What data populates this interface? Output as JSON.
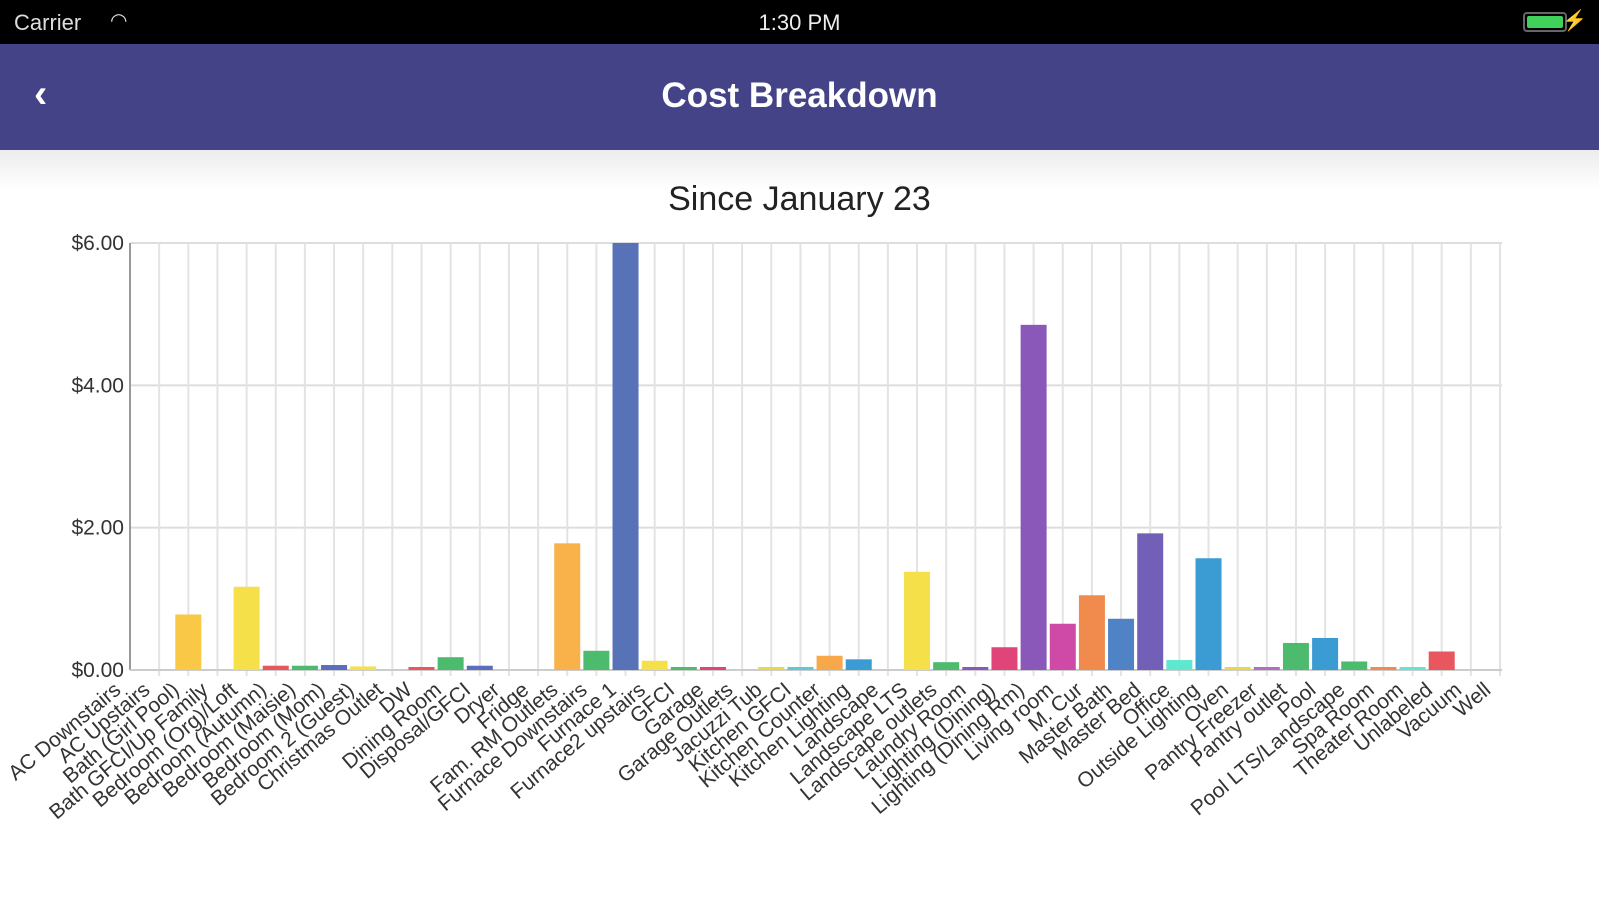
{
  "status_bar": {
    "carrier": "Carrier",
    "time": "1:30 PM"
  },
  "nav": {
    "title": "Cost Breakdown",
    "back_icon": "chevron-left-icon"
  },
  "chart_data": {
    "type": "bar",
    "title": "Since January 23",
    "xlabel": "",
    "ylabel": "",
    "ylim": [
      0,
      6
    ],
    "yticks": [
      "$0.00",
      "$2.00",
      "$4.00",
      "$6.00"
    ],
    "ytick_values": [
      0,
      2,
      4,
      6
    ],
    "grid": true,
    "categories": [
      "AC Downstairs",
      "AC Upstairs",
      "Bath (Girl Pool)",
      "Bath GFCI/Up Family",
      "Bedroom (Org)/Loft",
      "Bedroom (Autumn)",
      "Bedroom (Maisie)",
      "Bedroom (Mom)",
      "Bedroom 2 (Guest)",
      "Christmas Outlet",
      "DW",
      "Dining Room",
      "Disposal/GFCI",
      "Dryer",
      "Fridge",
      "Fam. RM Outlets",
      "Furnace Downstairs",
      "Furnace 1",
      "Furnace2 upstairs",
      "GFCI",
      "Garage",
      "Garage Outlets",
      "Jacuzzi Tub",
      "Kitchen GFCI",
      "Kitchen Counter",
      "Kitchen Lighting",
      "Landscape",
      "Landscape LTS",
      "Landscape outlets",
      "Laundry Room",
      "Lighting (Dining)",
      "Lighting (Dining Rm)",
      "Living room",
      "M. Cur",
      "Master Bath",
      "Master Bed",
      "Office",
      "Outside Lighting",
      "Oven",
      "Pantry Freezer",
      "Pantry outlet",
      "Pool",
      "Pool LTS/Landscape",
      "Spa Room",
      "Theater Room",
      "Unlabeled",
      "Vacuum",
      "Well"
    ],
    "values": [
      0,
      0,
      0.78,
      0,
      1.17,
      0.06,
      0.06,
      0.07,
      0.05,
      0,
      0.03,
      0.18,
      0.06,
      0,
      0,
      1.78,
      0.27,
      6.0,
      0.13,
      0.03,
      0.03,
      0,
      0.02,
      0.02,
      0.2,
      0.15,
      0,
      1.38,
      0.11,
      0.02,
      0.32,
      4.85,
      0.65,
      1.05,
      0.72,
      1.92,
      0.14,
      1.57,
      0.02,
      0.02,
      0.38,
      0.45,
      0.12,
      0.02,
      0.02,
      0.26,
      0,
      0
    ],
    "colors": [
      "#f5e04a",
      "#f9c846",
      "#f9c846",
      "#f5e04a",
      "#f5e04a",
      "#e8565e",
      "#4dbb6e",
      "#5b6dbf",
      "#f5e04a",
      "#f5e04a",
      "#e8565e",
      "#4dbb6e",
      "#5b6dbf",
      "#f5e04a",
      "#f9c846",
      "#f9b24a",
      "#4dbb6e",
      "#5872b8",
      "#f5e04a",
      "#4dbb6e",
      "#e0457a",
      "#f5e04a",
      "#e5d84a",
      "#5ec8d8",
      "#f6a84a",
      "#3b9bd3",
      "#f5e04a",
      "#f5e04a",
      "#4dbb6e",
      "#8a58b8",
      "#e0457a",
      "#8a58b8",
      "#cf4aa6",
      "#f08a4d",
      "#4f83c6",
      "#7260b8",
      "#5ee8d0",
      "#3b9bd3",
      "#e5d84a",
      "#b070c0",
      "#4dbb6e",
      "#3b9bd3",
      "#4dbb6e",
      "#f08a4d",
      "#5ee8d0",
      "#e8565e",
      "#e8565e",
      "#e8565e"
    ]
  }
}
